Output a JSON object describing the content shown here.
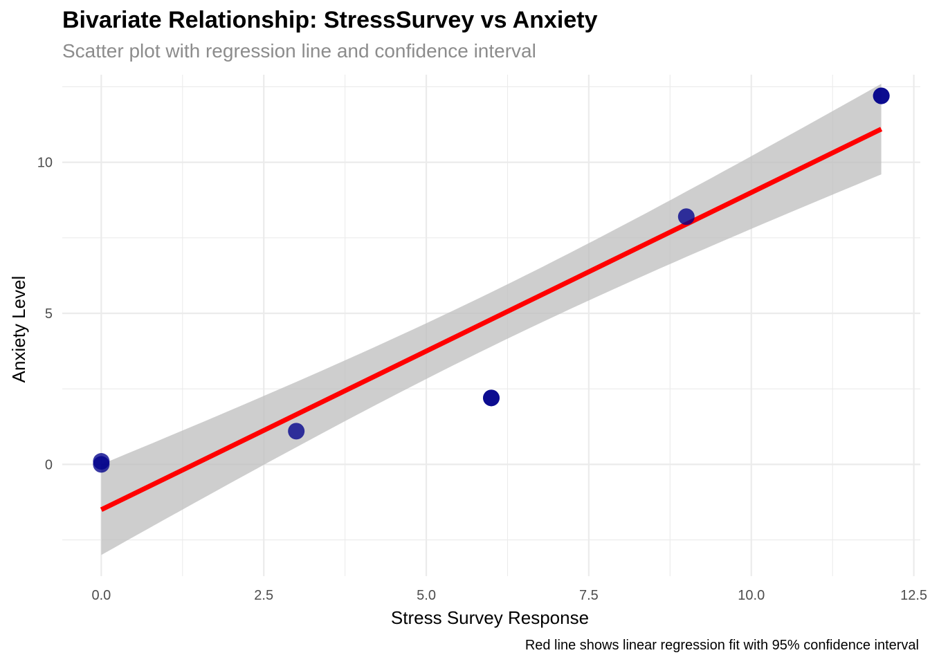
{
  "chart_data": {
    "type": "scatter",
    "title": "Bivariate Relationship: StressSurvey vs Anxiety",
    "subtitle": "Scatter plot with regression line and confidence interval",
    "caption": "Red line shows linear regression fit with 95% confidence interval",
    "xlabel": "Stress Survey Response",
    "ylabel": "Anxiety Level",
    "xlim": [
      -0.6,
      12.6
    ],
    "ylim": [
      -3.7,
      12.9
    ],
    "x_ticks": [
      0,
      2.5,
      5,
      7.5,
      10,
      12.5
    ],
    "x_tick_labels": [
      "0.0",
      "2.5",
      "5.0",
      "7.5",
      "10.0",
      "12.5"
    ],
    "y_ticks": [
      0,
      5,
      10
    ],
    "y_tick_labels": [
      "0",
      "5",
      "10"
    ],
    "grid": true,
    "points": [
      {
        "x": 0,
        "y": 0.0
      },
      {
        "x": 0,
        "y": 0.1
      },
      {
        "x": 3,
        "y": 1.1
      },
      {
        "x": 6,
        "y": 2.2
      },
      {
        "x": 6,
        "y": 2.2
      },
      {
        "x": 9,
        "y": 8.2
      },
      {
        "x": 12,
        "y": 12.2
      },
      {
        "x": 12,
        "y": 12.2
      }
    ],
    "regression": {
      "x": [
        0,
        12
      ],
      "y": [
        -1.5,
        11.1
      ],
      "ci_lower": [
        -3.0,
        9.5
      ],
      "ci_upper": [
        0.0,
        12.7
      ]
    },
    "colors": {
      "point": "#00008b",
      "line": "#ff0000",
      "ribbon": "#bebebe",
      "grid": "#ebebeb"
    }
  }
}
